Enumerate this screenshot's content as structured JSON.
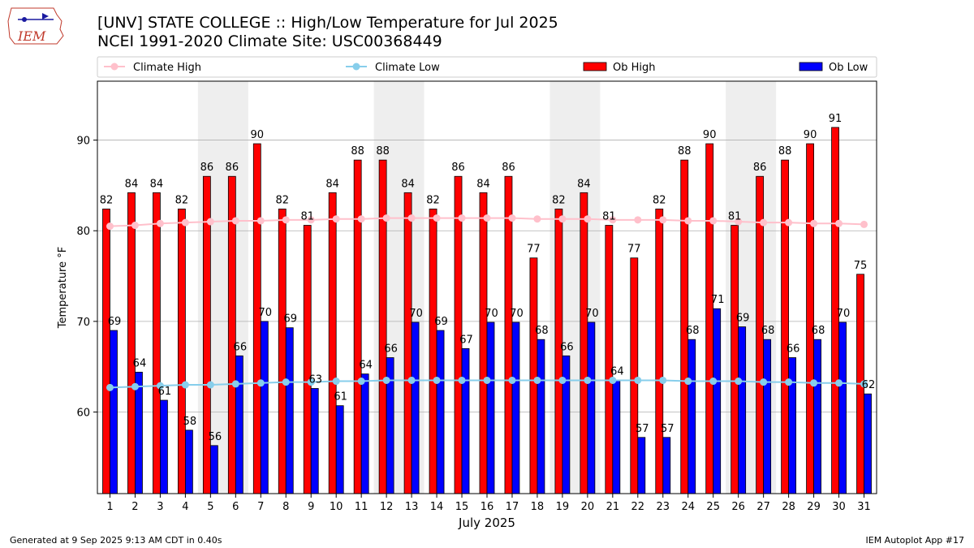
{
  "logo": {
    "text": "IEM"
  },
  "title_line1": "[UNV] STATE COLLEGE :: High/Low Temperature for Jul 2025",
  "title_line2": "NCEI 1991-2020 Climate Site: USC00368449",
  "footer_left": "Generated at 9 Sep 2025 9:13 AM CDT in 0.40s",
  "footer_right": "IEM Autoplot App #17",
  "colors": {
    "ob_high": "#ff0000",
    "ob_low": "#0000ff",
    "climate_high": "#ffc0cb",
    "climate_low": "#87ceeb",
    "weekend_shade": "#eeeeee",
    "grid": "#b0b0b0"
  },
  "chart_data": {
    "type": "bar",
    "xlabel": "July 2025",
    "ylabel": "Temperature °F",
    "ylim": [
      51,
      96.5
    ],
    "yticks": [
      60,
      70,
      80,
      90
    ],
    "grid": true,
    "legend_placement": "top",
    "weekend_bands": [
      [
        5,
        6
      ],
      [
        12,
        13
      ],
      [
        19,
        20
      ],
      [
        26,
        27
      ]
    ],
    "categories": [
      "1",
      "2",
      "3",
      "4",
      "5",
      "6",
      "7",
      "8",
      "9",
      "10",
      "11",
      "12",
      "13",
      "14",
      "15",
      "16",
      "17",
      "18",
      "19",
      "20",
      "21",
      "22",
      "23",
      "24",
      "25",
      "26",
      "27",
      "28",
      "29",
      "30",
      "31"
    ],
    "bar_series": [
      {
        "name": "Ob High",
        "labels": [
          "82",
          "84",
          "84",
          "82",
          "86",
          "86",
          "90",
          "82",
          "81",
          "84",
          "88",
          "88",
          "84",
          "82",
          "86",
          "84",
          "86",
          "77",
          "82",
          "84",
          "81",
          "77",
          "82",
          "88",
          "90",
          "81",
          "86",
          "88",
          "90",
          "91",
          "75"
        ],
        "values": [
          82.4,
          84.2,
          84.2,
          82.4,
          86.0,
          86.0,
          89.6,
          82.4,
          80.6,
          84.2,
          87.8,
          87.8,
          84.2,
          82.4,
          86.0,
          84.2,
          86.0,
          77.0,
          82.4,
          84.2,
          80.6,
          77.0,
          82.4,
          87.8,
          89.6,
          80.6,
          86.0,
          87.8,
          89.6,
          91.4,
          75.2
        ]
      },
      {
        "name": "Ob Low",
        "labels": [
          "69",
          "64",
          "61",
          "58",
          "56",
          "66",
          "70",
          "69",
          "63",
          "61",
          "64",
          "66",
          "70",
          "69",
          "67",
          "70",
          "70",
          "68",
          "66",
          "70",
          "64",
          "57",
          "57",
          "68",
          "71",
          "69",
          "68",
          "66",
          "68",
          "70",
          "62"
        ],
        "values": [
          69.0,
          64.4,
          61.3,
          58.0,
          56.3,
          66.2,
          70.0,
          69.3,
          62.6,
          60.7,
          64.2,
          66.0,
          69.9,
          69.0,
          67.0,
          69.9,
          69.9,
          68.0,
          66.2,
          69.9,
          63.5,
          57.2,
          57.2,
          68.0,
          71.4,
          69.4,
          68.0,
          66.0,
          68.0,
          69.9,
          62.0
        ]
      }
    ],
    "line_series": [
      {
        "name": "Climate High",
        "values": [
          80.5,
          80.6,
          80.8,
          80.9,
          81.0,
          81.1,
          81.1,
          81.2,
          81.2,
          81.3,
          81.3,
          81.4,
          81.4,
          81.4,
          81.4,
          81.4,
          81.4,
          81.3,
          81.3,
          81.3,
          81.2,
          81.2,
          81.2,
          81.1,
          81.1,
          81.0,
          80.9,
          80.9,
          80.8,
          80.8,
          80.7
        ]
      },
      {
        "name": "Climate Low",
        "values": [
          62.7,
          62.8,
          62.9,
          63.0,
          63.0,
          63.1,
          63.2,
          63.3,
          63.3,
          63.4,
          63.4,
          63.5,
          63.5,
          63.5,
          63.5,
          63.5,
          63.5,
          63.5,
          63.5,
          63.5,
          63.5,
          63.5,
          63.5,
          63.4,
          63.4,
          63.4,
          63.3,
          63.3,
          63.2,
          63.2,
          63.1
        ]
      }
    ]
  }
}
